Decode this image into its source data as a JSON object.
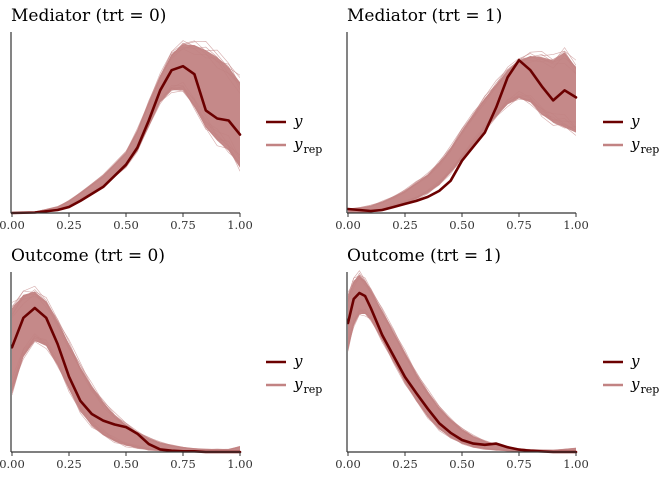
{
  "chart_data": [
    {
      "type": "line",
      "title": "Mediator (trt = 0)",
      "xlim": [
        0,
        1
      ],
      "xticks": [
        "0.00",
        "0.25",
        "0.50",
        "0.75",
        "1.00"
      ],
      "x": [
        0,
        0.1,
        0.2,
        0.25,
        0.3,
        0.4,
        0.5,
        0.55,
        0.6,
        0.65,
        0.7,
        0.75,
        0.8,
        0.85,
        0.9,
        0.95,
        1.0
      ],
      "series": [
        {
          "name": "y",
          "color": "#6b0000",
          "values": [
            0.0,
            0.005,
            0.03,
            0.06,
            0.12,
            0.26,
            0.48,
            0.65,
            0.92,
            1.22,
            1.42,
            1.46,
            1.38,
            1.02,
            0.94,
            0.92,
            0.78
          ]
        },
        {
          "name": "y_rep",
          "color": "#c28383",
          "band_low": [
            0.0,
            0.005,
            0.03,
            0.07,
            0.13,
            0.26,
            0.46,
            0.62,
            0.86,
            1.1,
            1.22,
            1.22,
            1.05,
            0.85,
            0.72,
            0.62,
            0.45
          ],
          "band_high": [
            0.0,
            0.01,
            0.06,
            0.12,
            0.2,
            0.37,
            0.6,
            0.82,
            1.1,
            1.36,
            1.58,
            1.68,
            1.67,
            1.62,
            1.55,
            1.45,
            1.3
          ]
        }
      ],
      "ylim": [
        0,
        1.8
      ]
    },
    {
      "type": "line",
      "title": "Mediator (trt = 1)",
      "xlim": [
        0,
        1
      ],
      "xticks": [
        "0.00",
        "0.25",
        "0.50",
        "0.75",
        "1.00"
      ],
      "x": [
        0,
        0.05,
        0.1,
        0.15,
        0.2,
        0.25,
        0.3,
        0.35,
        0.4,
        0.45,
        0.5,
        0.55,
        0.6,
        0.65,
        0.7,
        0.75,
        0.8,
        0.85,
        0.9,
        0.95,
        1.0
      ],
      "series": [
        {
          "name": "y",
          "color": "#6b0000",
          "values": [
            0.04,
            0.03,
            0.02,
            0.03,
            0.06,
            0.09,
            0.12,
            0.16,
            0.22,
            0.32,
            0.52,
            0.66,
            0.8,
            1.05,
            1.35,
            1.52,
            1.42,
            1.26,
            1.12,
            1.22,
            1.15
          ]
        },
        {
          "name": "y_rep",
          "color": "#c28383",
          "band_low": [
            0.0,
            0.0,
            0.01,
            0.03,
            0.06,
            0.1,
            0.14,
            0.2,
            0.28,
            0.4,
            0.54,
            0.68,
            0.82,
            0.96,
            1.08,
            1.14,
            1.1,
            0.98,
            0.9,
            0.85,
            0.8
          ],
          "band_high": [
            0.04,
            0.05,
            0.07,
            0.11,
            0.16,
            0.22,
            0.3,
            0.38,
            0.5,
            0.64,
            0.82,
            0.98,
            1.14,
            1.28,
            1.42,
            1.52,
            1.56,
            1.55,
            1.52,
            1.6,
            1.45
          ]
        }
      ],
      "ylim": [
        0,
        1.8
      ]
    },
    {
      "type": "line",
      "title": "Outcome (trt = 0)",
      "xlim": [
        0,
        1
      ],
      "xticks": [
        "0.00",
        "0.25",
        "0.50",
        "0.75",
        "1.00"
      ],
      "x": [
        0,
        0.05,
        0.1,
        0.15,
        0.2,
        0.25,
        0.3,
        0.35,
        0.4,
        0.45,
        0.5,
        0.55,
        0.6,
        0.65,
        0.7,
        0.75,
        0.8,
        0.85,
        0.9,
        0.95,
        1.0
      ],
      "series": [
        {
          "name": "y",
          "color": "#6b0000",
          "values": [
            1.6,
            2.05,
            2.2,
            2.05,
            1.65,
            1.15,
            0.78,
            0.58,
            0.48,
            0.42,
            0.38,
            0.28,
            0.12,
            0.04,
            0.02,
            0.01,
            0.01,
            0.0,
            0.0,
            0.0,
            0.0
          ]
        },
        {
          "name": "y_rep",
          "color": "#c28383",
          "band_low": [
            0.9,
            1.45,
            1.7,
            1.62,
            1.32,
            0.95,
            0.62,
            0.4,
            0.26,
            0.16,
            0.1,
            0.06,
            0.03,
            0.02,
            0.01,
            0.0,
            0.0,
            0.0,
            0.0,
            0.0,
            0.0
          ],
          "band_high": [
            2.2,
            2.4,
            2.45,
            2.3,
            2.0,
            1.65,
            1.3,
            1.0,
            0.76,
            0.56,
            0.42,
            0.3,
            0.21,
            0.14,
            0.1,
            0.07,
            0.05,
            0.04,
            0.04,
            0.04,
            0.08
          ]
        }
      ],
      "ylim": [
        0,
        2.75
      ]
    },
    {
      "type": "line",
      "title": "Outcome (trt = 1)",
      "xlim": [
        0,
        1
      ],
      "xticks": [
        "0.00",
        "0.25",
        "0.50",
        "0.75",
        "1.00"
      ],
      "x": [
        0,
        0.025,
        0.05,
        0.075,
        0.1,
        0.15,
        0.2,
        0.25,
        0.3,
        0.35,
        0.4,
        0.45,
        0.5,
        0.55,
        0.6,
        0.65,
        0.7,
        0.75,
        0.8,
        0.9,
        1.0
      ],
      "series": [
        {
          "name": "y",
          "color": "#6b0000",
          "values": [
            2.15,
            2.55,
            2.65,
            2.6,
            2.4,
            1.95,
            1.6,
            1.25,
            0.98,
            0.72,
            0.48,
            0.32,
            0.2,
            0.14,
            0.12,
            0.14,
            0.08,
            0.04,
            0.02,
            0.0,
            0.0
          ]
        },
        {
          "name": "y_rep",
          "color": "#c28383",
          "band_low": [
            1.7,
            2.1,
            2.3,
            2.3,
            2.2,
            1.85,
            1.5,
            1.15,
            0.85,
            0.58,
            0.38,
            0.24,
            0.14,
            0.08,
            0.05,
            0.03,
            0.02,
            0.01,
            0.01,
            0.0,
            0.0
          ],
          "band_high": [
            2.6,
            2.85,
            2.95,
            2.85,
            2.7,
            2.35,
            2.0,
            1.65,
            1.3,
            1.0,
            0.74,
            0.54,
            0.38,
            0.26,
            0.18,
            0.12,
            0.08,
            0.05,
            0.04,
            0.03,
            0.06
          ]
        }
      ],
      "ylim": [
        0,
        3.0
      ]
    }
  ],
  "legend": {
    "y_label": "y",
    "yrep_base": "y",
    "yrep_sub": "rep",
    "y_color": "#6b0000",
    "yrep_color": "#c28383"
  }
}
